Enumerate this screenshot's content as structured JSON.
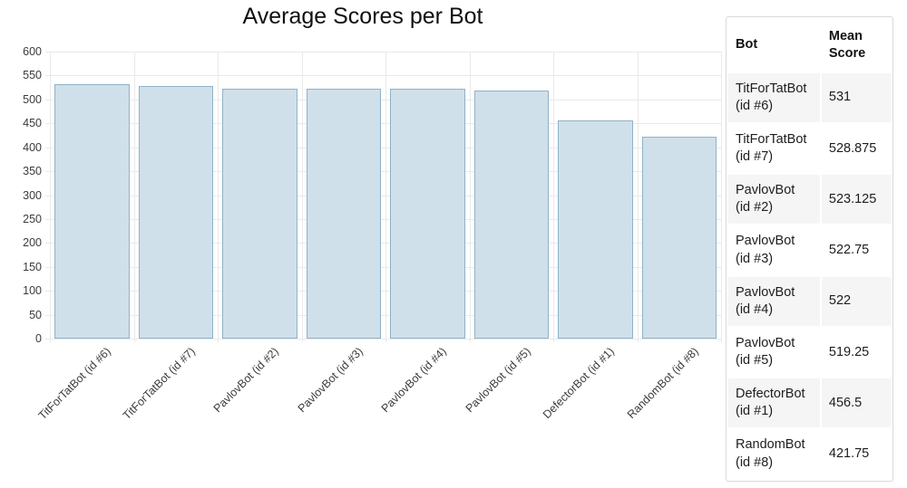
{
  "chart_data": {
    "type": "bar",
    "title": "Average Scores per Bot",
    "categories": [
      "TitForTatBot (id #6)",
      "TitForTatBot (id #7)",
      "PavlovBot (id #2)",
      "PavlovBot (id #3)",
      "PavlovBot (id #4)",
      "PavlovBot (id #5)",
      "DefectorBot (id #1)",
      "RandomBot (id #8)"
    ],
    "values": [
      531,
      528.875,
      523.125,
      522.75,
      522,
      519.25,
      456.5,
      421.75
    ],
    "xlabel": "",
    "ylabel": "",
    "ylim": [
      0,
      600
    ],
    "ytick_step": 50,
    "grid": true,
    "legend": false,
    "bar_fill": "#cfe0ea",
    "bar_stroke": "#8fb2c8",
    "gridline_color": "#e9e9e9",
    "axis_label_color": "#3b3b3b"
  },
  "table": {
    "headers": [
      "Bot",
      "Mean Score"
    ],
    "rows": [
      {
        "bot": "TitForTatBot (id #6)",
        "mean_score": "531"
      },
      {
        "bot": "TitForTatBot (id #7)",
        "mean_score": "528.875"
      },
      {
        "bot": "PavlovBot (id #2)",
        "mean_score": "523.125"
      },
      {
        "bot": "PavlovBot (id #3)",
        "mean_score": "522.75"
      },
      {
        "bot": "PavlovBot (id #4)",
        "mean_score": "522"
      },
      {
        "bot": "PavlovBot (id #5)",
        "mean_score": "519.25"
      },
      {
        "bot": "DefectorBot (id #1)",
        "mean_score": "456.5"
      },
      {
        "bot": "RandomBot (id #8)",
        "mean_score": "421.75"
      }
    ],
    "stripe_color": "#f5f5f5",
    "border_color": "#d9d9d9"
  }
}
